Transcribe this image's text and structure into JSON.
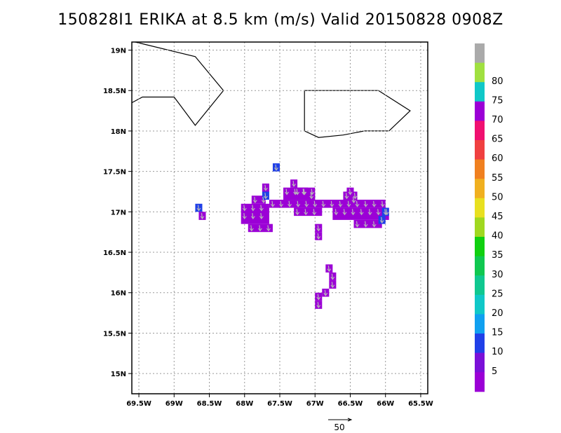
{
  "chart_data": {
    "type": "heatmap",
    "title": "150828I1 ERIKA at 8.5 km (m/s) Valid 20150828 0908Z",
    "x_ticks": [
      "69.5W",
      "69W",
      "68.5W",
      "68W",
      "67.5W",
      "67W",
      "66.5W",
      "66W",
      "65.5W"
    ],
    "y_ticks": [
      "19N",
      "18.5N",
      "18N",
      "17.5N",
      "17N",
      "16.5N",
      "16N",
      "15.5N",
      "15N"
    ],
    "lon_range": [
      -69.6,
      -65.4
    ],
    "lat_range": [
      14.75,
      19.1
    ],
    "grid": true,
    "colorbar": {
      "labels": [
        "5",
        "10",
        "15",
        "20",
        "25",
        "30",
        "35",
        "40",
        "45",
        "50",
        "55",
        "60",
        "65",
        "70",
        "75",
        "80"
      ],
      "colors": [
        "#9b00d6",
        "#7a10d8",
        "#2040e8",
        "#10a0f0",
        "#10c8c8",
        "#10c890",
        "#10c850",
        "#10d010",
        "#a0d820",
        "#e8e020",
        "#f0b020",
        "#f08020",
        "#f04040",
        "#f01070",
        "#9b00d6",
        "#10c8c8",
        "#a0e040",
        "#aaaaaa"
      ]
    },
    "reference_vector": {
      "label": "50",
      "value": 50
    },
    "coastlines": [
      [
        [
          -69.6,
          18.35
        ],
        [
          -69.45,
          18.42
        ],
        [
          -69.0,
          18.42
        ],
        [
          -68.7,
          18.07
        ],
        [
          -68.3,
          18.5
        ],
        [
          -68.7,
          18.92
        ],
        [
          -69.55,
          19.1
        ]
      ],
      [
        [
          -66.1,
          18.5
        ],
        [
          -65.65,
          18.25
        ],
        [
          -65.95,
          18.0
        ],
        [
          -66.3,
          18.0
        ],
        [
          -66.6,
          17.95
        ],
        [
          -66.95,
          17.92
        ],
        [
          -67.15,
          18.0
        ],
        [
          -67.15,
          18.5
        ],
        [
          -66.1,
          18.5
        ]
      ]
    ],
    "cells": [
      {
        "lon": -67.55,
        "lat": 17.55,
        "v": 10
      },
      {
        "lon": -67.3,
        "lat": 17.35,
        "v": 5
      },
      {
        "lon": -67.25,
        "lat": 17.25,
        "v": 5
      },
      {
        "lon": -67.15,
        "lat": 17.25,
        "v": 5
      },
      {
        "lon": -67.05,
        "lat": 17.2,
        "v": 5
      },
      {
        "lon": -67.7,
        "lat": 17.3,
        "v": 5
      },
      {
        "lon": -67.7,
        "lat": 17.2,
        "v": 10
      },
      {
        "lon": -66.5,
        "lat": 17.25,
        "v": 5
      },
      {
        "lon": -66.45,
        "lat": 17.15,
        "v": 5
      },
      {
        "lon": -68.65,
        "lat": 17.05,
        "v": 10
      },
      {
        "lon": -68.6,
        "lat": 16.95,
        "v": 5
      },
      {
        "lon": -66.95,
        "lat": 16.8,
        "v": 5
      },
      {
        "lon": -66.95,
        "lat": 16.7,
        "v": 5
      },
      {
        "lon": -66.8,
        "lat": 16.3,
        "v": 5
      },
      {
        "lon": -66.75,
        "lat": 16.2,
        "v": 5
      },
      {
        "lon": -66.75,
        "lat": 16.1,
        "v": 5
      },
      {
        "lon": -66.85,
        "lat": 16.0,
        "v": 5
      },
      {
        "lon": -66.95,
        "lat": 15.95,
        "v": 5
      },
      {
        "lon": -66.95,
        "lat": 15.85,
        "v": 5
      },
      {
        "lon": -66.0,
        "lat": 17.0,
        "v": 10
      },
      {
        "lon": -66.05,
        "lat": 16.9,
        "v": 10
      }
    ],
    "cell_blocks": [
      {
        "lon0": -68.05,
        "lon1": -67.65,
        "lat0": 16.85,
        "lat1": 17.1,
        "v": 5
      },
      {
        "lon0": -67.95,
        "lon1": -67.6,
        "lat0": 16.75,
        "lat1": 16.85,
        "v": 5
      },
      {
        "lon0": -67.65,
        "lon1": -66.0,
        "lat0": 17.05,
        "lat1": 17.15,
        "v": 5
      },
      {
        "lon0": -67.45,
        "lon1": -67.0,
        "lat0": 17.15,
        "lat1": 17.3,
        "v": 5
      },
      {
        "lon0": -67.3,
        "lon1": -66.9,
        "lat0": 16.95,
        "lat1": 17.05,
        "v": 5
      },
      {
        "lon0": -66.75,
        "lon1": -65.95,
        "lat0": 16.9,
        "lat1": 17.05,
        "v": 5
      },
      {
        "lon0": -66.45,
        "lon1": -66.05,
        "lat0": 16.8,
        "lat1": 16.9,
        "v": 5
      },
      {
        "lon0": -67.9,
        "lon1": -67.7,
        "lat0": 17.1,
        "lat1": 17.2,
        "v": 5
      },
      {
        "lon0": -66.6,
        "lon1": -66.4,
        "lat0": 17.15,
        "lat1": 17.25,
        "v": 5
      }
    ]
  }
}
